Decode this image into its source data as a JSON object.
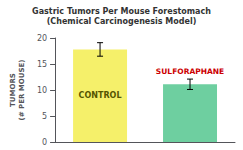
{
  "chart_data": {
    "type": "bar",
    "title": "Gastric Tumors Per Mouse Forestomach",
    "subtitle": "(Chemical Carcinogenesis Model)",
    "categories": [
      "Control",
      "Sulforaphane"
    ],
    "values": [
      17.8,
      11.1
    ],
    "errors": [
      1.3,
      1.0
    ],
    "colors": [
      "#f5f06a",
      "#6ecfa0"
    ],
    "annotations": [
      {
        "text": "CONTROL",
        "color": "#555500"
      },
      {
        "text": "SULFORAPHANE",
        "color": "#cc0000"
      }
    ],
    "ylabel": "TUMORS\n(# PER MOUSE)",
    "ylim": [
      0,
      20
    ],
    "yticks": [
      0,
      5,
      10,
      15,
      20
    ],
    "grid": false,
    "tick_labels": "y"
  }
}
